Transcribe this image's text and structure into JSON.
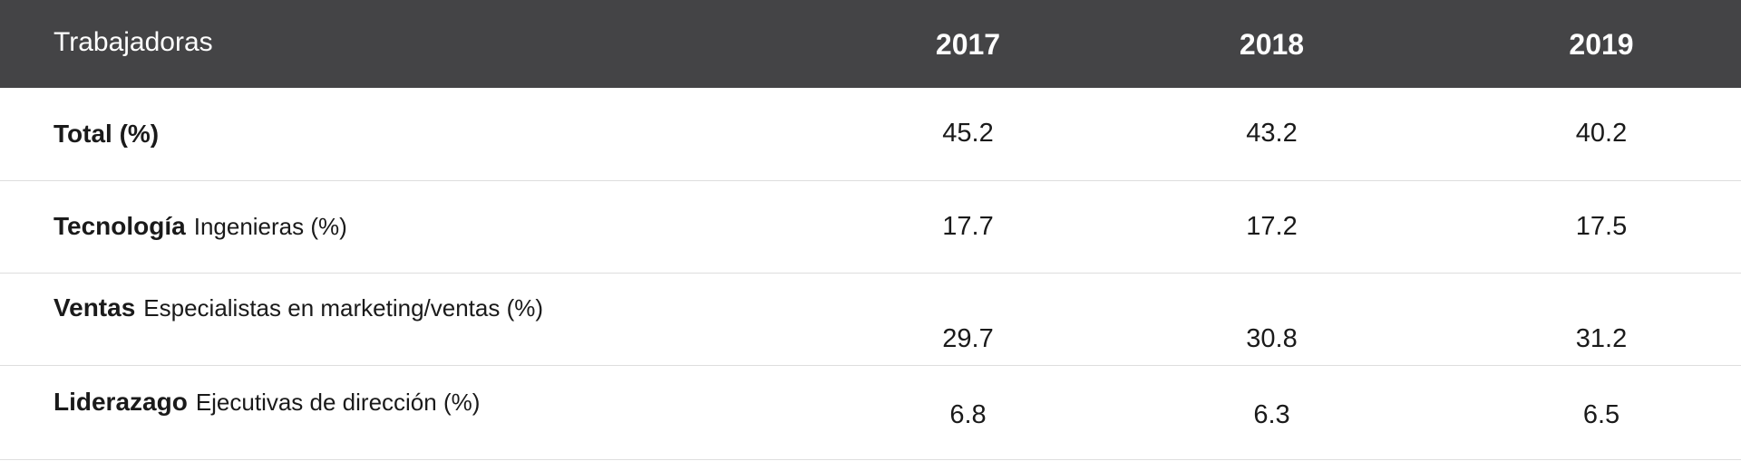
{
  "table": {
    "header": {
      "label": "Trabajadoras",
      "years": [
        "2017",
        "2018",
        "2019"
      ]
    },
    "rows": [
      {
        "category": "Total (%)",
        "subtitle": "",
        "values": [
          "45.2",
          "43.2",
          "40.2"
        ]
      },
      {
        "category": "Tecnología",
        "subtitle": "Ingenieras (%)",
        "values": [
          "17.7",
          "17.2",
          "17.5"
        ]
      },
      {
        "category": "Ventas",
        "subtitle": "Especialistas en marketing/ventas (%)",
        "values": [
          "29.7",
          "30.8",
          "31.2"
        ]
      },
      {
        "category": "Liderazago",
        "subtitle": "Ejecutivas de dirección (%)",
        "values": [
          "6.8",
          "6.3",
          "6.5"
        ]
      }
    ]
  },
  "colors": {
    "header_bg": "#444446",
    "header_text": "#ffffff",
    "row_divider": "#dedede"
  }
}
